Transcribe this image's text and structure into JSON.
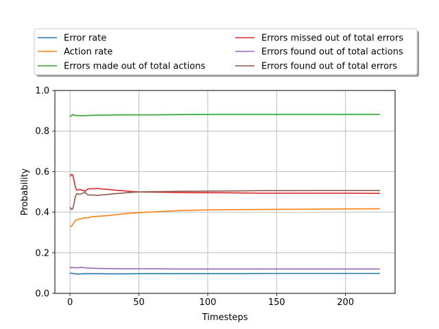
{
  "chart_data": {
    "type": "line",
    "title": "",
    "xlabel": "Timesteps",
    "ylabel": "Probability",
    "xlim": [
      -11,
      236
    ],
    "ylim": [
      0.0,
      1.0
    ],
    "xticks": [
      0,
      50,
      100,
      150,
      200
    ],
    "yticks": [
      0.0,
      0.2,
      0.4,
      0.6,
      0.8,
      1.0
    ],
    "xtick_labels": [
      "0",
      "50",
      "100",
      "150",
      "200"
    ],
    "ytick_labels": [
      "0.0",
      "0.2",
      "0.4",
      "0.6",
      "0.8",
      "1.0"
    ],
    "grid": true,
    "legend_position": "above plot, two columns",
    "series": [
      {
        "name": "Error rate",
        "color": "#1f77b4",
        "points": [
          [
            0,
            0.1
          ],
          [
            1,
            0.099
          ],
          [
            2,
            0.098
          ],
          [
            3,
            0.097
          ],
          [
            4,
            0.096
          ],
          [
            6,
            0.095
          ],
          [
            8,
            0.096
          ],
          [
            10,
            0.097
          ],
          [
            14,
            0.097
          ],
          [
            20,
            0.097
          ],
          [
            30,
            0.096
          ],
          [
            40,
            0.096
          ],
          [
            50,
            0.097
          ],
          [
            60,
            0.097
          ],
          [
            80,
            0.097
          ],
          [
            100,
            0.097
          ],
          [
            125,
            0.097
          ],
          [
            150,
            0.098
          ],
          [
            175,
            0.098
          ],
          [
            200,
            0.098
          ],
          [
            225,
            0.098
          ]
        ]
      },
      {
        "name": "Action rate",
        "color": "#ff7f0e",
        "points": [
          [
            0,
            0.33
          ],
          [
            1,
            0.33
          ],
          [
            2,
            0.34
          ],
          [
            3,
            0.35
          ],
          [
            4,
            0.36
          ],
          [
            6,
            0.365
          ],
          [
            8,
            0.368
          ],
          [
            10,
            0.372
          ],
          [
            13,
            0.372
          ],
          [
            16,
            0.378
          ],
          [
            20,
            0.38
          ],
          [
            25,
            0.382
          ],
          [
            30,
            0.385
          ],
          [
            35,
            0.389
          ],
          [
            40,
            0.393
          ],
          [
            45,
            0.395
          ],
          [
            50,
            0.398
          ],
          [
            55,
            0.4
          ],
          [
            60,
            0.401
          ],
          [
            70,
            0.405
          ],
          [
            80,
            0.408
          ],
          [
            90,
            0.41
          ],
          [
            100,
            0.411
          ],
          [
            110,
            0.412
          ],
          [
            125,
            0.413
          ],
          [
            150,
            0.414
          ],
          [
            175,
            0.415
          ],
          [
            200,
            0.416
          ],
          [
            225,
            0.417
          ]
        ]
      },
      {
        "name": "Errors made out of total actions",
        "color": "#2ca02c",
        "points": [
          [
            0,
            0.871
          ],
          [
            1,
            0.876
          ],
          [
            2,
            0.882
          ],
          [
            3,
            0.878
          ],
          [
            4,
            0.876
          ],
          [
            6,
            0.877
          ],
          [
            8,
            0.875
          ],
          [
            10,
            0.876
          ],
          [
            15,
            0.877
          ],
          [
            20,
            0.878
          ],
          [
            30,
            0.879
          ],
          [
            40,
            0.88
          ],
          [
            50,
            0.88
          ],
          [
            60,
            0.88
          ],
          [
            80,
            0.881
          ],
          [
            100,
            0.882
          ],
          [
            125,
            0.882
          ],
          [
            150,
            0.882
          ],
          [
            175,
            0.882
          ],
          [
            200,
            0.882
          ],
          [
            225,
            0.882
          ]
        ]
      },
      {
        "name": "Errors missed out of total errors",
        "color": "#d62728",
        "points": [
          [
            0,
            0.575
          ],
          [
            1,
            0.587
          ],
          [
            2,
            0.583
          ],
          [
            3,
            0.555
          ],
          [
            4,
            0.52
          ],
          [
            5,
            0.508
          ],
          [
            7,
            0.512
          ],
          [
            9,
            0.508
          ],
          [
            11,
            0.503
          ],
          [
            13,
            0.515
          ],
          [
            16,
            0.515
          ],
          [
            18,
            0.516
          ],
          [
            20,
            0.517
          ],
          [
            24,
            0.514
          ],
          [
            28,
            0.512
          ],
          [
            32,
            0.509
          ],
          [
            36,
            0.507
          ],
          [
            40,
            0.505
          ],
          [
            45,
            0.502
          ],
          [
            50,
            0.5
          ],
          [
            60,
            0.499
          ],
          [
            70,
            0.498
          ],
          [
            80,
            0.497
          ],
          [
            90,
            0.496
          ],
          [
            100,
            0.496
          ],
          [
            120,
            0.495
          ],
          [
            140,
            0.494
          ],
          [
            160,
            0.494
          ],
          [
            180,
            0.494
          ],
          [
            200,
            0.494
          ],
          [
            225,
            0.493
          ]
        ]
      },
      {
        "name": "Errors found out of total actions",
        "color": "#9467bd",
        "points": [
          [
            0,
            0.13
          ],
          [
            1,
            0.125
          ],
          [
            2,
            0.128
          ],
          [
            3,
            0.127
          ],
          [
            5,
            0.126
          ],
          [
            7,
            0.127
          ],
          [
            9,
            0.128
          ],
          [
            12,
            0.125
          ],
          [
            16,
            0.124
          ],
          [
            20,
            0.123
          ],
          [
            30,
            0.122
          ],
          [
            40,
            0.121
          ],
          [
            50,
            0.121
          ],
          [
            60,
            0.121
          ],
          [
            80,
            0.12
          ],
          [
            100,
            0.12
          ],
          [
            125,
            0.12
          ],
          [
            150,
            0.12
          ],
          [
            175,
            0.12
          ],
          [
            200,
            0.12
          ],
          [
            225,
            0.12
          ]
        ]
      },
      {
        "name": "Errors found out of total errors",
        "color": "#8c564b",
        "points": [
          [
            0,
            0.425
          ],
          [
            1,
            0.413
          ],
          [
            2,
            0.417
          ],
          [
            3,
            0.445
          ],
          [
            4,
            0.48
          ],
          [
            5,
            0.492
          ],
          [
            7,
            0.488
          ],
          [
            9,
            0.493
          ],
          [
            11,
            0.497
          ],
          [
            13,
            0.485
          ],
          [
            16,
            0.485
          ],
          [
            18,
            0.484
          ],
          [
            20,
            0.483
          ],
          [
            24,
            0.486
          ],
          [
            28,
            0.488
          ],
          [
            32,
            0.491
          ],
          [
            36,
            0.493
          ],
          [
            40,
            0.495
          ],
          [
            45,
            0.498
          ],
          [
            50,
            0.5
          ],
          [
            60,
            0.501
          ],
          [
            70,
            0.502
          ],
          [
            80,
            0.503
          ],
          [
            90,
            0.503
          ],
          [
            100,
            0.504
          ],
          [
            120,
            0.505
          ],
          [
            140,
            0.506
          ],
          [
            160,
            0.506
          ],
          [
            180,
            0.507
          ],
          [
            200,
            0.507
          ],
          [
            225,
            0.507
          ]
        ]
      }
    ]
  }
}
